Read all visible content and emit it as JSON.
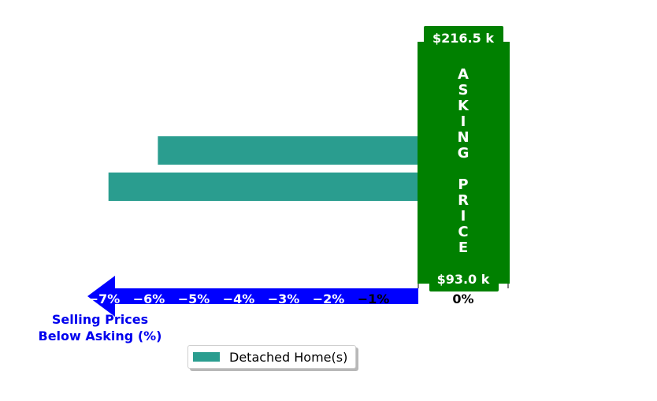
{
  "chart_data": {
    "type": "bar",
    "orientation": "horizontal",
    "series": [
      {
        "name": "Detached Home(s)",
        "color": "#2a9d8f",
        "values": [
          -5.8,
          -6.9
        ]
      }
    ],
    "x_ticks": [
      {
        "value": -7,
        "label": "−7%"
      },
      {
        "value": -6,
        "label": "−6%"
      },
      {
        "value": -5,
        "label": "−5%"
      },
      {
        "value": -4,
        "label": "−4%"
      },
      {
        "value": -3,
        "label": "−3%"
      },
      {
        "value": -2,
        "label": "−2%"
      },
      {
        "value": -1,
        "label": "−1%"
      },
      {
        "value": 0,
        "label": "0%"
      }
    ],
    "xlim": [
      -8,
      1
    ],
    "xlabel": "Selling Prices\nBelow Asking (%)",
    "legend_position": "bottom-center",
    "asking_price_panel": {
      "text": "ASKING PRICE",
      "max_label": "$216.5 k",
      "min_label": "$93.0 k",
      "color": "#008000"
    },
    "arrow_color": "#0000ff"
  },
  "legend": {
    "label": "Detached Home(s)",
    "color": "#2a9d8f"
  }
}
